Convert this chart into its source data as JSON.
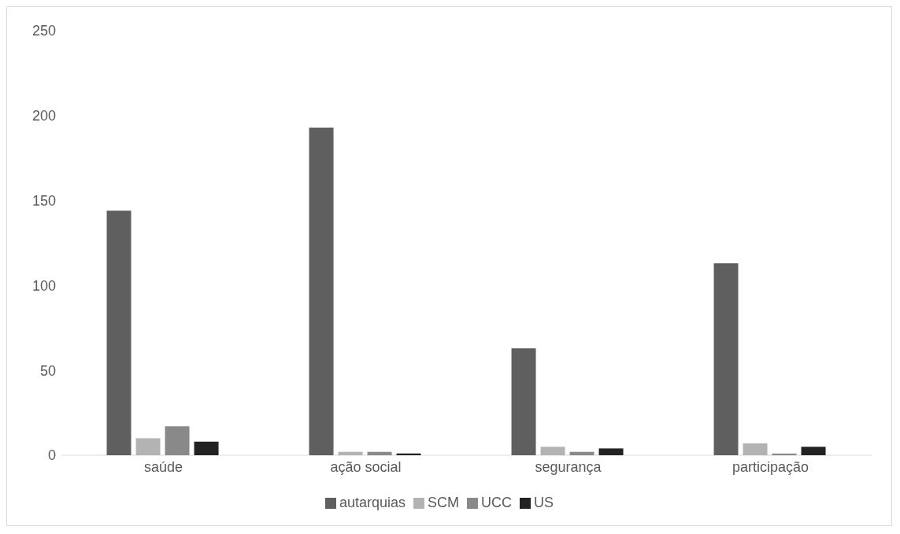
{
  "chart_data": {
    "type": "bar",
    "categories": [
      "saúde",
      "ação social",
      "segurança",
      "participação"
    ],
    "series": [
      {
        "name": "autarquias",
        "color": "#5f5f5f",
        "values": [
          144,
          193,
          63,
          113
        ]
      },
      {
        "name": "SCM",
        "color": "#b3b3b3",
        "values": [
          10,
          2,
          5,
          7
        ]
      },
      {
        "name": "UCC",
        "color": "#898989",
        "values": [
          17,
          2,
          2,
          1
        ]
      },
      {
        "name": "US",
        "color": "#222222",
        "values": [
          8,
          1,
          4,
          5
        ]
      }
    ],
    "ylim": [
      0,
      250
    ],
    "yticks": [
      0,
      50,
      100,
      150,
      200,
      250
    ],
    "grid": false,
    "legend": "bottom"
  }
}
